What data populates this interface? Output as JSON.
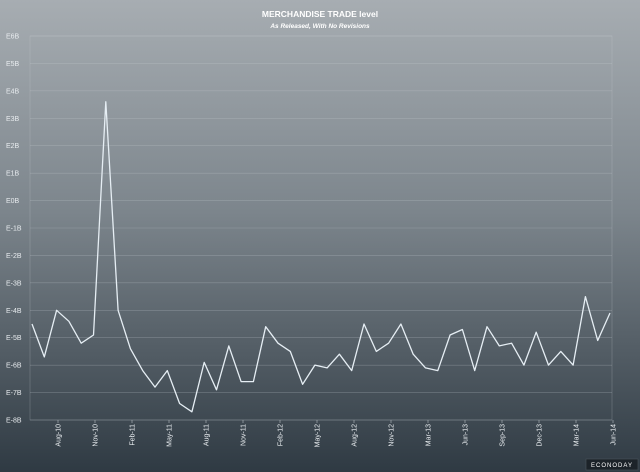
{
  "chart_data": {
    "type": "line",
    "title": "MERCHANDISE TRADE level",
    "subtitle": "As Released, With No Revisions",
    "xlabel": "",
    "ylabel": "",
    "y_tick_labels": [
      "E6B",
      "E5B",
      "E4B",
      "E3B",
      "E2B",
      "E1B",
      "E0B",
      "E-1B",
      "E-2B",
      "E-3B",
      "E-4B",
      "E-5B",
      "E-6B",
      "E-7B",
      "E-8B"
    ],
    "ylim": [
      -8,
      6
    ],
    "x_tick_labels": [
      "Aug-10",
      "Nov-10",
      "Feb-11",
      "May-11",
      "Aug-11",
      "Nov-11",
      "Feb-12",
      "May-12",
      "Aug-12",
      "Nov-12",
      "Mar-13",
      "Jun-13",
      "Sep-13",
      "Dec-13",
      "Mar-14",
      "Jun-14"
    ],
    "line_color": "#e6eef4",
    "grid": true,
    "series": [
      {
        "name": "Merchandise trade",
        "values": [
          -4.5,
          -5.7,
          -4.0,
          -4.4,
          -5.2,
          -4.9,
          3.6,
          -4.0,
          -5.4,
          -6.2,
          -6.8,
          -6.2,
          -7.4,
          -7.7,
          -5.9,
          -6.9,
          -5.3,
          -6.6,
          -6.6,
          -4.6,
          -5.2,
          -5.5,
          -6.7,
          -6.0,
          -6.1,
          -5.6,
          -6.2,
          -4.5,
          -5.5,
          -5.2,
          -4.5,
          -5.6,
          -6.1,
          -6.2,
          -4.9,
          -4.7,
          -6.2,
          -4.6,
          -5.3,
          -5.2,
          -6.0,
          -4.8,
          -6.0,
          -5.5,
          -6.0,
          -3.5,
          -5.1,
          -4.1
        ]
      }
    ]
  },
  "footer": {
    "brand": "ECONODAY"
  }
}
